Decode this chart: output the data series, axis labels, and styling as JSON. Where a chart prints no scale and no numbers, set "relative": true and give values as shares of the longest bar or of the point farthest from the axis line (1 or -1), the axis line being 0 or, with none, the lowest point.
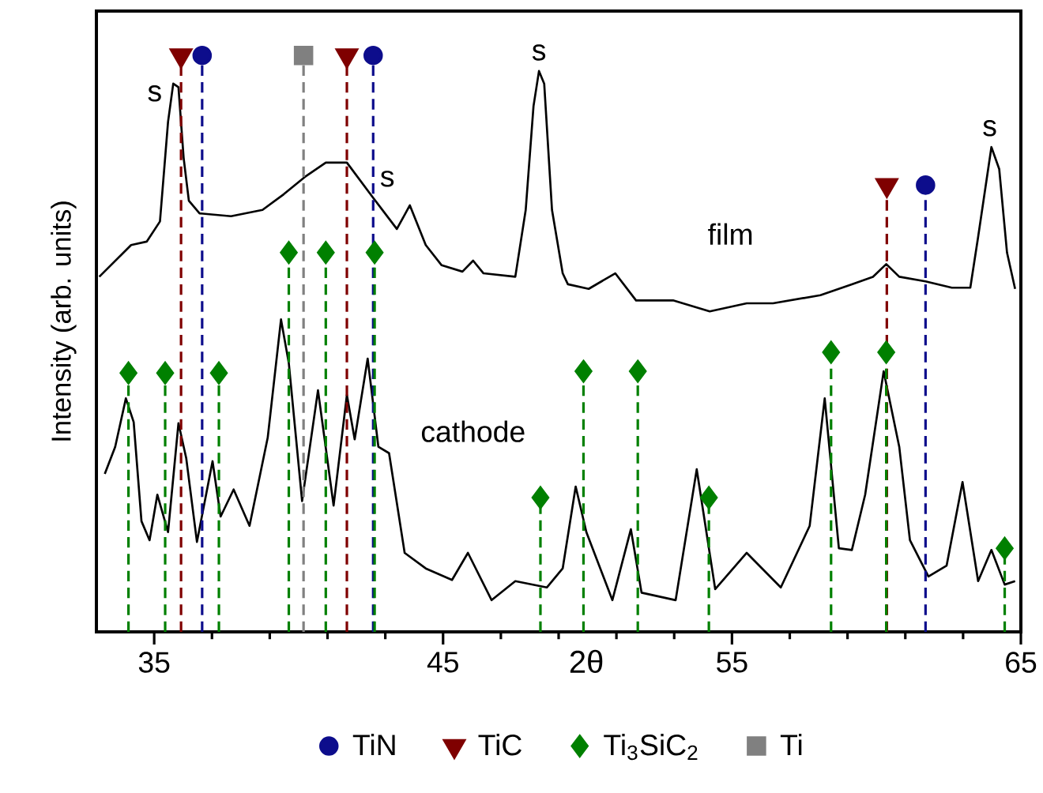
{
  "chart_data": {
    "type": "line",
    "relative": true,
    "xlabel": "2θ",
    "ylabel": "Intensity (arb. units)",
    "xlim": [
      33,
      65
    ],
    "xticks": [
      35,
      45,
      55,
      65
    ],
    "legend": "bottom",
    "series": [
      {
        "color": "#000000",
        "x": [
          33.1,
          34.2,
          34.74,
          35.2,
          35.48,
          35.66,
          35.84,
          36.02,
          36.2,
          36.57,
          37.66,
          38.75,
          39.48,
          40.21,
          40.94,
          41.67,
          42.58,
          43.4,
          43.85,
          44.4,
          44.95,
          45.67,
          46.04,
          46.4,
          47.5,
          47.86,
          48.13,
          48.32,
          48.5,
          48.77,
          49.14,
          49.32,
          50.04,
          50.96,
          51.68,
          52.96,
          54.23,
          55.51,
          56.42,
          58.06,
          59.15,
          59.88,
          60.34,
          60.79,
          61.7,
          62.61,
          63.25,
          63.52,
          63.98,
          64.25,
          64.52,
          64.8
        ],
        "values": [
          0.616,
          0.671,
          0.677,
          0.712,
          0.885,
          0.951,
          0.945,
          0.822,
          0.748,
          0.726,
          0.721,
          0.732,
          0.759,
          0.789,
          0.814,
          0.814,
          0.753,
          0.699,
          0.74,
          0.671,
          0.636,
          0.625,
          0.644,
          0.622,
          0.616,
          0.732,
          0.912,
          0.973,
          0.951,
          0.732,
          0.622,
          0.603,
          0.595,
          0.622,
          0.575,
          0.575,
          0.556,
          0.57,
          0.57,
          0.584,
          0.603,
          0.616,
          0.638,
          0.616,
          0.608,
          0.597,
          0.597,
          0.685,
          0.841,
          0.803,
          0.658,
          0.595
        ]
      },
      {
        "color": "#000000",
        "x": [
          33.29,
          33.65,
          34.02,
          34.29,
          34.56,
          34.84,
          35.11,
          35.48,
          35.84,
          36.11,
          36.48,
          37.02,
          37.3,
          37.75,
          38.3,
          38.93,
          39.39,
          39.66,
          40.12,
          40.67,
          41.21,
          41.67,
          41.94,
          42.39,
          42.76,
          43.13,
          43.67,
          44.4,
          45.31,
          45.86,
          46.68,
          47.5,
          48.59,
          49.14,
          49.59,
          49.96,
          50.86,
          51.5,
          51.87,
          53.05,
          53.78,
          54.42,
          55.51,
          56.69,
          57.69,
          58.21,
          58.7,
          59.15,
          59.61,
          60.25,
          60.79,
          61.16,
          61.8,
          62.43,
          62.98,
          63.52,
          63.98,
          64.44,
          64.8
        ],
        "values": [
          0.274,
          0.321,
          0.405,
          0.364,
          0.192,
          0.159,
          0.238,
          0.173,
          0.362,
          0.301,
          0.156,
          0.296,
          0.2,
          0.247,
          0.184,
          0.337,
          0.542,
          0.466,
          0.227,
          0.419,
          0.219,
          0.411,
          0.334,
          0.474,
          0.321,
          0.31,
          0.137,
          0.11,
          0.09,
          0.137,
          0.055,
          0.088,
          0.077,
          0.11,
          0.252,
          0.173,
          0.055,
          0.178,
          0.068,
          0.055,
          0.282,
          0.074,
          0.137,
          0.077,
          0.184,
          0.405,
          0.145,
          0.142,
          0.238,
          0.452,
          0.321,
          0.159,
          0.096,
          0.115,
          0.26,
          0.088,
          0.142,
          0.082,
          0.088
        ]
      },
      {
        "type": "lollipop",
        "name": "TiN",
        "color": "#0d0d8c",
        "marker": "circle",
        "line_style": "dashed",
        "x": [
          36.66,
          42.58,
          61.7
        ],
        "values": [
          1.0,
          1.0,
          0.775
        ]
      },
      {
        "type": "lollipop",
        "name": "TiC",
        "color": "#7f0000",
        "marker": "triangle",
        "line_style": "dashed",
        "x": [
          35.93,
          41.67,
          60.36
        ],
        "values": [
          1.0,
          1.0,
          0.775
        ]
      },
      {
        "type": "lollipop",
        "name": "Ti$_{3}$SiC$_{2}$",
        "color": "#008000",
        "marker": "diamond",
        "line_style": "dashed",
        "x": [
          34.11,
          35.38,
          37.24,
          39.66,
          40.94,
          42.63,
          48.37,
          49.86,
          51.74,
          54.2,
          58.43,
          60.34,
          64.44
        ],
        "values": [
          0.449,
          0.449,
          0.449,
          0.658,
          0.658,
          0.658,
          0.233,
          0.452,
          0.452,
          0.233,
          0.485,
          0.485,
          0.145
        ]
      },
      {
        "type": "lollipop",
        "name": "Ti",
        "color": "#808080",
        "marker": "square",
        "line_style": "dashed",
        "x": [
          40.17
        ],
        "values": [
          1.0
        ]
      }
    ],
    "annotations": [
      {
        "text": "s",
        "x": 35.66,
        "y": 0.951
      },
      {
        "text": "s",
        "x": 43.85,
        "y": 0.74
      },
      {
        "text": "s",
        "x": 48.32,
        "y": 0.973
      },
      {
        "text": "s",
        "x": 63.98,
        "y": 0.841
      },
      "film",
      "cathode"
    ]
  }
}
